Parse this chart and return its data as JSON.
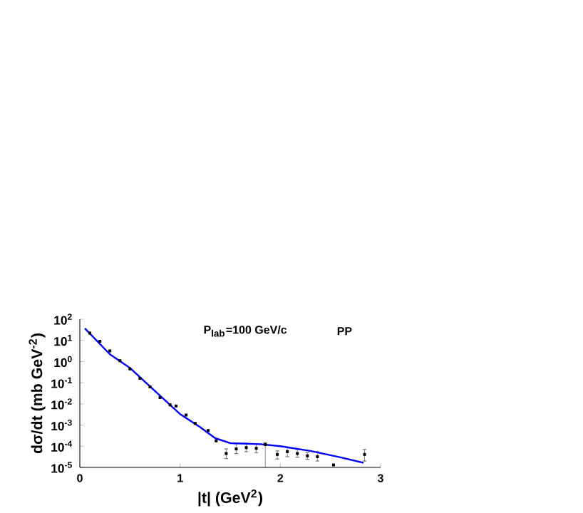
{
  "chart_data": {
    "type": "line",
    "xlabel": "|t| (GeV$^{2}$)",
    "ylabel": "dσ/dt (mb GeV$^{-2}$)",
    "annotations": [
      "P$_{lab}$=100 GeV/c",
      "PP"
    ],
    "log": "y",
    "xlim": [
      0,
      3
    ],
    "xticks": [
      0,
      1,
      2,
      3
    ],
    "ylim": [
      1e-05,
      100
    ],
    "yticks": [
      {
        "value": 1e-05,
        "label": "10$^{-5}$"
      },
      {
        "value": 0.0001,
        "label": "10$^{-4}$"
      },
      {
        "value": 0.001,
        "label": "10$^{-3}$"
      },
      {
        "value": 0.01,
        "label": "10$^{-2}$"
      },
      {
        "value": 0.1,
        "label": "10$^{-1}$"
      },
      {
        "value": 1,
        "label": "10$^{0}$"
      },
      {
        "value": 10,
        "label": "10$^{1}$"
      },
      {
        "value": 100,
        "label": "10$^{2}$"
      }
    ],
    "series": [
      {
        "type": "scatter",
        "marker": "square",
        "color": "#000000",
        "x": [
          0.1,
          0.2,
          0.3,
          0.4,
          0.5,
          0.6,
          0.7,
          0.8,
          0.9,
          0.96,
          1.06,
          1.15,
          1.28,
          1.36,
          1.46,
          1.56,
          1.66,
          1.76,
          1.85,
          1.97,
          2.07,
          2.17,
          2.27,
          2.37,
          2.53,
          2.84
        ],
        "values": [
          22,
          9,
          3.2,
          1.1,
          0.45,
          0.16,
          0.063,
          0.02,
          0.009,
          0.008,
          0.003,
          0.0012,
          0.00055,
          0.00018,
          4.5e-05,
          7.5e-05,
          8.6e-05,
          8e-05,
          0.00012,
          4.1e-05,
          5.6e-05,
          4.5e-05,
          3.5e-05,
          3.2e-05,
          1.3e-05,
          4.1e-05
        ],
        "errors": [
          null,
          null,
          null,
          null,
          null,
          null,
          null,
          null,
          null,
          null,
          null,
          null,
          null,
          null,
          [
            2.6e-05,
            7.5e-05
          ],
          [
            4.5e-05,
            0.00013
          ],
          [
            5.5e-05,
            0.00014
          ],
          [
            5e-05,
            0.00013
          ],
          [
            1e-05,
            0.00015
          ],
          [
            2.5e-05,
            6e-05
          ],
          [
            3.2e-05,
            9e-05
          ],
          [
            3e-05,
            7e-05
          ],
          [
            2.4e-05,
            5e-05
          ],
          [
            2e-05,
            5.5e-05
          ],
          null,
          [
            2e-05,
            7e-05
          ]
        ]
      },
      {
        "marker": "none",
        "color": "#0000ff",
        "x": [
          0.05,
          0.3,
          0.5,
          0.75,
          1.0,
          1.2,
          1.35,
          1.5,
          1.8,
          2.0,
          2.3,
          2.6,
          2.83
        ],
        "values": [
          37,
          2.2,
          0.5,
          0.04,
          0.0033,
          0.0008,
          0.00024,
          0.00014,
          0.000125,
          0.0001,
          6e-05,
          3e-05,
          1.65e-05
        ]
      }
    ]
  }
}
